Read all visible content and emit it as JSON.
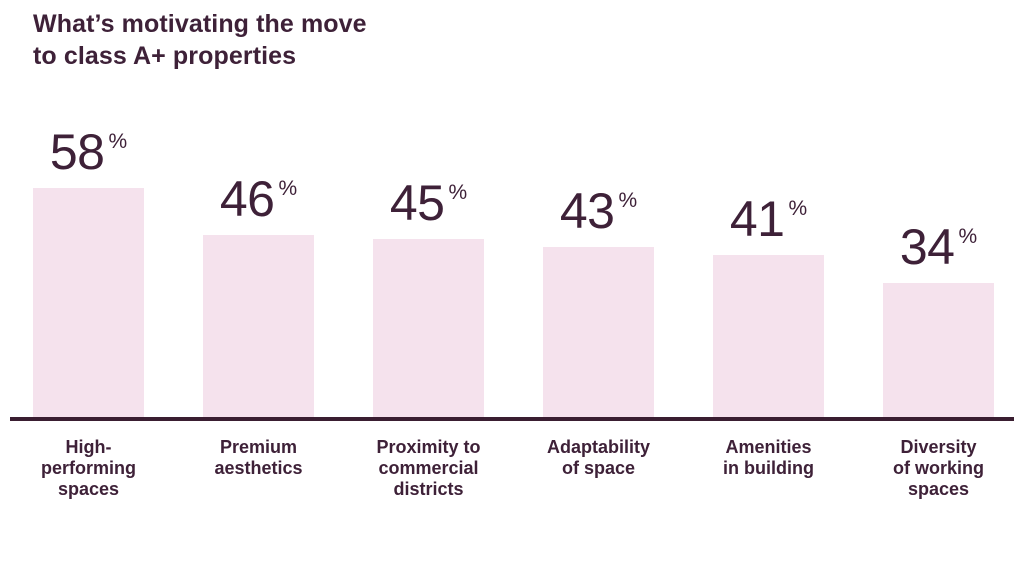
{
  "title": "What’s motivating the move\nto class A+ properties",
  "colors": {
    "text": "#3e2138",
    "bar_fill": "#f5e2ed",
    "axis_line": "#3a1e31",
    "background": "#ffffff"
  },
  "chart_data": {
    "type": "bar",
    "title": "What’s motivating the move to class A+ properties",
    "unit": "%",
    "categories": [
      "High-\nperforming\nspaces",
      "Premium\naesthetics",
      "Proximity to\ncommercial\ndistricts",
      "Adaptability\nof space",
      "Amenities\nin building",
      "Diversity\nof working\nspaces"
    ],
    "values": [
      58,
      46,
      45,
      43,
      41,
      34
    ],
    "value_labels": [
      "58%",
      "46%",
      "45%",
      "43%",
      "41%",
      "34%"
    ],
    "xlabel": "",
    "ylabel": "",
    "ylim": [
      0,
      60
    ],
    "grid": false,
    "legend": false,
    "value_label_position": "above-bar",
    "baseline_shown": true
  }
}
